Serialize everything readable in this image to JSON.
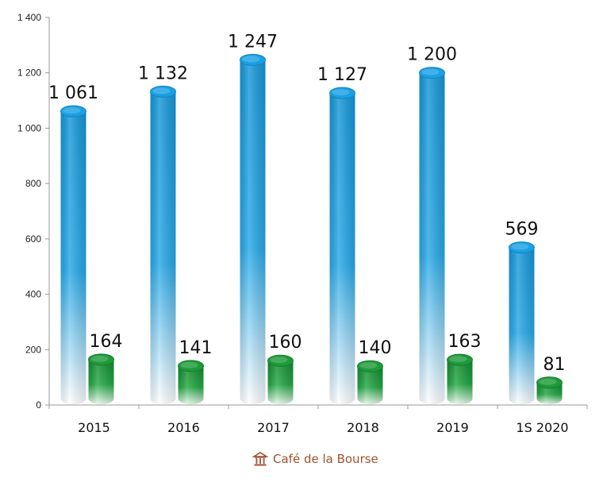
{
  "chart_data": {
    "type": "bar",
    "style": "3d-cylinder",
    "categories": [
      "2015",
      "2016",
      "2017",
      "2018",
      "2019",
      "1S 2020"
    ],
    "series": [
      {
        "values": [
          1061,
          1132,
          1247,
          1127,
          1200,
          569
        ],
        "labels": [
          "1 061",
          "1 132",
          "1 247",
          "1 127",
          "1 200",
          "569"
        ],
        "color": "#1fa3e0"
      },
      {
        "values": [
          164,
          141,
          160,
          140,
          163,
          81
        ],
        "labels": [
          "164",
          "141",
          "160",
          "140",
          "163",
          "81"
        ],
        "color": "#1e9a3a"
      }
    ],
    "ylim": [
      0,
      1400
    ],
    "yticks": [
      0,
      200,
      400,
      600,
      800,
      1000,
      1200,
      1400
    ],
    "ytick_labels": [
      "0",
      "200",
      "400",
      "600",
      "800",
      "1 000",
      "1 200",
      "1 400"
    ],
    "grid": false,
    "legend": "none"
  },
  "watermark": {
    "text": "Café de la Bourse",
    "icon": "bourse-building-icon"
  }
}
